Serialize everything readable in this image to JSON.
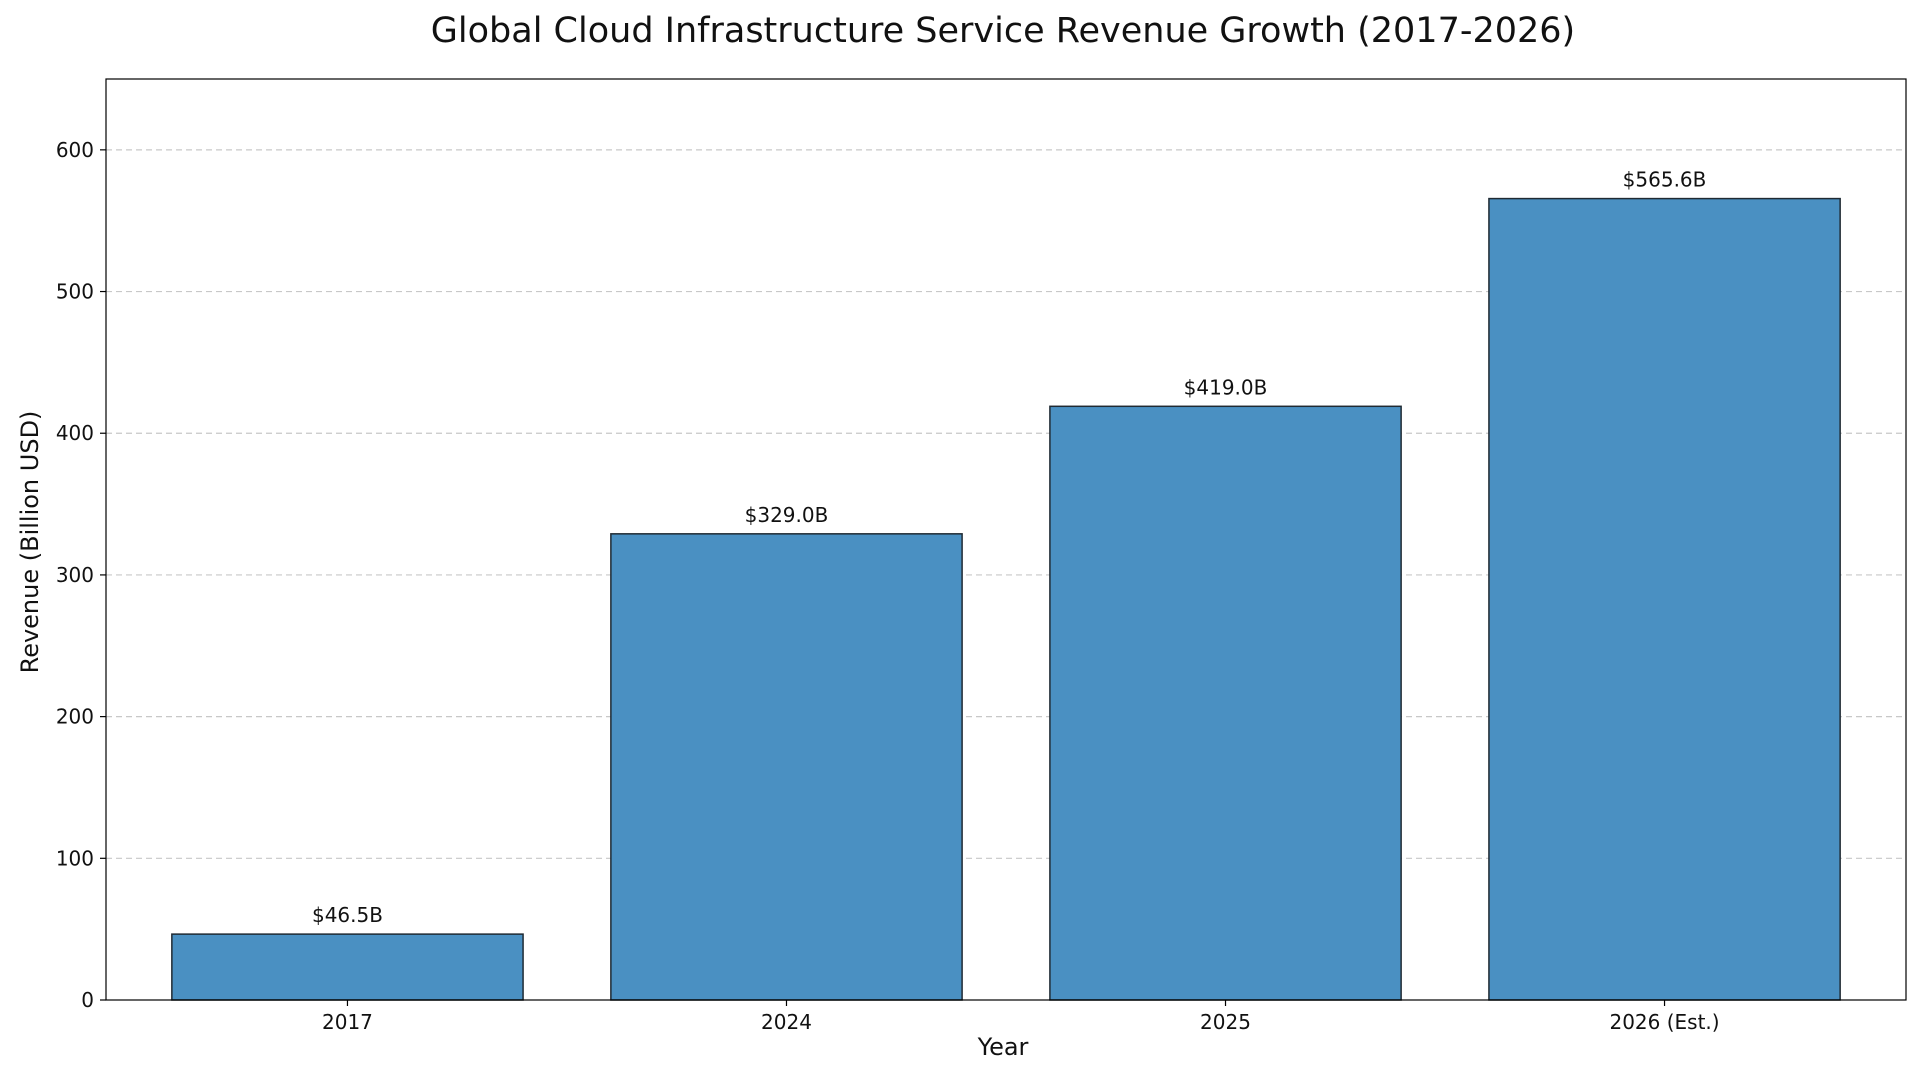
{
  "chart_data": {
    "type": "bar",
    "title": "Global Cloud Infrastructure Service Revenue Growth (2017-2026)",
    "xlabel": "Year",
    "ylabel": "Revenue (Billion USD)",
    "categories": [
      "2017",
      "2024",
      "2025",
      "2026 (Est.)"
    ],
    "values": [
      46.5,
      329.0,
      419.0,
      565.6
    ],
    "data_labels": [
      "$46.5B",
      "$329.0B",
      "$419.0B",
      "$565.6B"
    ],
    "ylim": [
      0,
      650
    ],
    "yticks": [
      0,
      100,
      200,
      300,
      400,
      500,
      600
    ],
    "grid": true,
    "legend": "none",
    "bar_color": "#4a90c2",
    "bar_edge_color": "#1f2a33"
  }
}
